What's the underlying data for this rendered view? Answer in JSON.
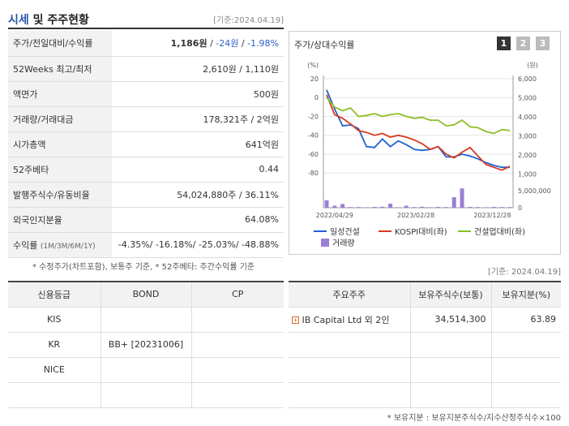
{
  "header": {
    "title_accent": "시세",
    "title_rest": " 및 주주현황",
    "base_date": "[기준:2024.04.19]"
  },
  "info": {
    "rows": [
      {
        "label": "주가/전일대비/수익률",
        "price": "1,186원",
        "sep": " / ",
        "change": "-24원",
        "sep2": " / ",
        "rate": "-1.98%"
      },
      {
        "label": "52Weeks 최고/최저",
        "value": "2,610원 / 1,110원"
      },
      {
        "label": "액면가",
        "value": "500원"
      },
      {
        "label": "거래량/거래대금",
        "value": "178,321주 / 2억원"
      },
      {
        "label": "시가총액",
        "value": "641억원"
      },
      {
        "label": "52주베타",
        "value": "0.44"
      },
      {
        "label": "발행주식수/유동비율",
        "value": "54,024,880주 / 36.11%"
      },
      {
        "label": "외국인지분율",
        "value": "64.08%"
      },
      {
        "label": "수익률",
        "label_sub": "(1M/3M/6M/1Y)",
        "value": "-4.35%/ -16.18%/ -25.03%/ -48.88%"
      }
    ]
  },
  "chart": {
    "title": "주가/상대수익률",
    "page_buttons": [
      "1",
      "2",
      "3"
    ],
    "colors": {
      "stock": "#2060d0",
      "kospi": "#d83a20",
      "industry": "#8cbf26",
      "volume": "#9b7fd4"
    },
    "left_unit": "(%)",
    "right_unit": "(원)",
    "legend": {
      "stock": "일성건설",
      "kospi": "KOSPI대비(좌)",
      "industry": "건설업대비(좌)",
      "volume": "거래량"
    }
  },
  "chart_data": {
    "type": "line",
    "x_ticks": [
      "2022/04/29",
      "2023/02/28",
      "2023/12/28"
    ],
    "y_left_ticks": [
      "20",
      "0",
      "-20",
      "-40",
      "-60",
      "-80"
    ],
    "y_left_range": [
      -85,
      20
    ],
    "y_right_ticks": [
      "6,000",
      "5,000",
      "4,000",
      "3,000",
      "2,000",
      "1,000"
    ],
    "y_right_range": [
      800,
      6000
    ],
    "volume_tick_labels": [
      "5,000,000",
      "0"
    ],
    "volume_range": [
      0,
      6000000
    ],
    "series": [
      {
        "name": "일성건설",
        "axis": "left",
        "values": [
          8,
          -12,
          -30,
          -29,
          -33,
          -52,
          -53,
          -44,
          -52,
          -46,
          -50,
          -55,
          -56,
          -55,
          -52,
          -63,
          -63,
          -60,
          -62,
          -65,
          -69,
          -72,
          -74,
          -74
        ]
      },
      {
        "name": "KOSPI대비(좌)",
        "axis": "left",
        "values": [
          3,
          -18,
          -22,
          -28,
          -35,
          -37,
          -40,
          -38,
          -42,
          -40,
          -42,
          -45,
          -49,
          -55,
          -52,
          -60,
          -64,
          -58,
          -53,
          -62,
          -71,
          -74,
          -77,
          -73
        ]
      },
      {
        "name": "건설업대비(좌)",
        "axis": "left",
        "values": [
          0,
          -10,
          -14,
          -11,
          -20,
          -19,
          -17,
          -20,
          -18,
          -17,
          -20,
          -22,
          -21,
          -24,
          -24,
          -30,
          -29,
          -24,
          -31,
          -32,
          -36,
          -38,
          -34,
          -35
        ]
      },
      {
        "name": "거래량",
        "type": "bar",
        "axis": "volume",
        "values": [
          2200000,
          600000,
          1100000,
          200000,
          200000,
          150000,
          250000,
          300000,
          1200000,
          150000,
          600000,
          200000,
          300000,
          150000,
          250000,
          200000,
          3100000,
          5700000,
          250000,
          200000,
          150000,
          250000,
          200000,
          200000
        ]
      }
    ]
  },
  "notes": {
    "note1": "* 수정주가(차트포함), 보통주 기준, * 52주베타: 주간수익률 기준",
    "base_date_mid": "[기준: 2024.04.19]",
    "note2": "* 보유지분 : 보유지분주식수/지수산정주식수×100"
  },
  "rating": {
    "headers": [
      "신용등급",
      "BOND",
      "CP"
    ],
    "rows": [
      [
        "KIS",
        "",
        ""
      ],
      [
        "KR",
        "BB+  [20231006]",
        ""
      ],
      [
        "NICE",
        "",
        ""
      ],
      [
        "",
        "",
        ""
      ]
    ]
  },
  "holders": {
    "headers": [
      "주요주주",
      "보유주식수(보통)",
      "보유지분(%)"
    ],
    "rows": [
      [
        "IB Capital Ltd 외 2인",
        "34,514,300",
        "63.89"
      ],
      [
        "",
        "",
        ""
      ],
      [
        "",
        "",
        ""
      ],
      [
        "",
        "",
        ""
      ]
    ]
  }
}
